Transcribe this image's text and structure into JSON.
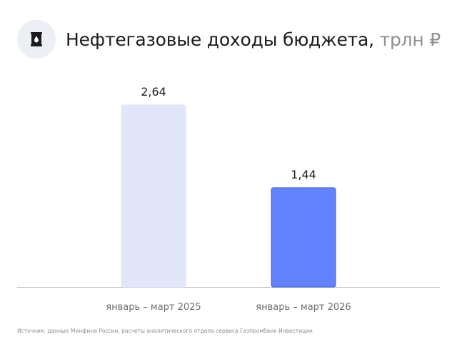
{
  "header": {
    "title": "Нефтегазовые доходы бюджета,",
    "unit": " трлн ₽",
    "icon": "oil-barrel-icon"
  },
  "chart_data": {
    "type": "bar",
    "title": "Нефтегазовые доходы бюджета, трлн ₽",
    "categories": [
      "январь – март 2025",
      "январь – март 2026"
    ],
    "values": [
      2.64,
      1.44
    ],
    "value_labels": [
      "2,64",
      "1,44"
    ],
    "colors": [
      "#e1e6fb",
      "#6182fb"
    ],
    "bar_border_colors": [
      "#e1e6fb",
      "#3f5fe0"
    ],
    "ylim": [
      0,
      2.64
    ],
    "grid": false,
    "legend": "none"
  },
  "footer": {
    "source": "Источник: данные Минфина России, расчеты аналитического отдела сервиса Газпромбанк Инвестиции"
  }
}
